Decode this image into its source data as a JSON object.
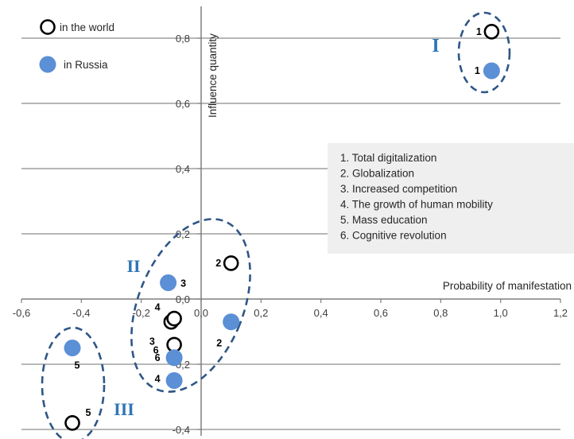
{
  "chart_data": {
    "type": "scatter",
    "title": "",
    "xlabel": "Probability of manifestation",
    "ylabel": "Influence quantity",
    "xlim": [
      -0.6,
      1.2
    ],
    "ylim": [
      -0.4,
      0.9
    ],
    "x_ticks": [
      -0.6,
      -0.4,
      -0.2,
      0.0,
      0.2,
      0.4,
      0.6,
      0.8,
      1.0,
      1.2
    ],
    "y_ticks": [
      -0.4,
      -0.2,
      0.0,
      0.2,
      0.4,
      0.6,
      0.8
    ],
    "x_tick_labels": [
      "-0,6",
      "-0,4",
      "-0,2",
      "0,0",
      "0,2",
      "0,4",
      "0,6",
      "0,8",
      "1,0",
      "1,2"
    ],
    "y_tick_labels": [
      "-0,4",
      "-0,2",
      "0,0",
      "0,2",
      "0,4",
      "0,6",
      "0,8"
    ],
    "grid": "horizontal",
    "legend": {
      "placement": "top-left",
      "entries": [
        "in the world",
        "in Russia"
      ]
    },
    "factors_box": {
      "placement": "right",
      "items": [
        "1. Total digitalization",
        "2. Globalization",
        "3. Increased competition",
        "4. The growth of human mobility",
        "5. Mass education",
        "6. Cognitive revolution"
      ]
    },
    "series": [
      {
        "name": "in the world",
        "marker": "hollow-circle",
        "color": "#000000",
        "points": [
          {
            "label": "1",
            "x": 0.97,
            "y": 0.82
          },
          {
            "label": "2",
            "x": 0.1,
            "y": 0.11
          },
          {
            "label": "3",
            "x": -0.1,
            "y": -0.07
          },
          {
            "label": "4",
            "x": -0.09,
            "y": -0.06
          },
          {
            "label": "5",
            "x": -0.43,
            "y": -0.38
          },
          {
            "label": "6",
            "x": -0.09,
            "y": -0.14
          }
        ]
      },
      {
        "name": "in Russia",
        "marker": "filled-circle",
        "color": "#5b8fd6",
        "points": [
          {
            "label": "1",
            "x": 0.97,
            "y": 0.7
          },
          {
            "label": "2",
            "x": 0.1,
            "y": -0.07
          },
          {
            "label": "3",
            "x": -0.11,
            "y": 0.05
          },
          {
            "label": "4",
            "x": -0.09,
            "y": -0.25
          },
          {
            "label": "5",
            "x": -0.43,
            "y": -0.15
          },
          {
            "label": "6",
            "x": -0.09,
            "y": -0.18
          }
        ]
      }
    ],
    "clusters": [
      {
        "label": "I",
        "color": "#2e75b6"
      },
      {
        "label": "II",
        "color": "#2e75b6"
      },
      {
        "label": "III",
        "color": "#2e75b6"
      }
    ]
  }
}
